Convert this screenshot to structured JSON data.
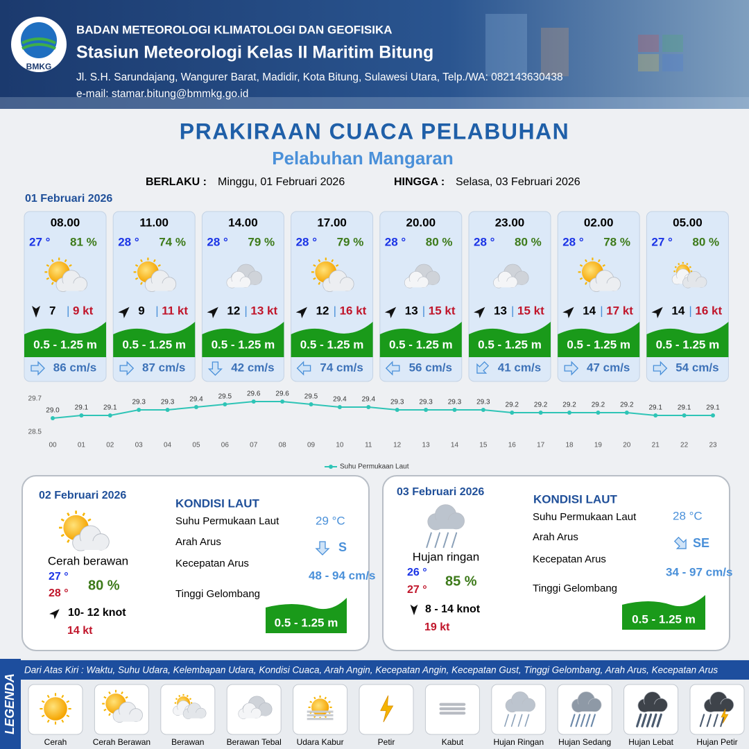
{
  "header": {
    "logo": "BMKG",
    "agency": "BADAN METEOROLOGI KLIMATOLOGI DAN GEOFISIKA",
    "station": "Stasiun Meteorologi Kelas II Maritim Bitung",
    "address": "Jl. S.H. Sarundajang, Wangurer Barat, Madidir, Kota Bitung, Sulawesi Utara, Telp./WA: 082143630438",
    "email": "e-mail: stamar.bitung@bmmkg.go.id"
  },
  "title": "PRAKIRAAN CUACA PELABUHAN",
  "subtitle": "Pelabuhan Mangaran",
  "validity": {
    "from_label": "BERLAKU :",
    "from": "Minggu, 01 Februari 2026",
    "to_label": "HINGGA :",
    "to": "Selasa, 03 Februari 2026"
  },
  "day1": {
    "date": "01 Februari 2026",
    "separator": "|",
    "forecasts": [
      {
        "time": "08.00",
        "temp": "27 °",
        "humidity": "81 %",
        "condition": "Cerah Berawan",
        "wind_dir": 180,
        "wind": "7",
        "gust": "9 kt",
        "wave": "0.5 - 1.25 m",
        "current_dir": 90,
        "current": "86 cm/s"
      },
      {
        "time": "11.00",
        "temp": "28 °",
        "humidity": "74 %",
        "condition": "Cerah Berawan",
        "wind_dir": 45,
        "wind": "9",
        "gust": "11 kt",
        "wave": "0.5 - 1.25 m",
        "current_dir": 90,
        "current": "87 cm/s"
      },
      {
        "time": "14.00",
        "temp": "28 °",
        "humidity": "79 %",
        "condition": "Berawan Tebal",
        "wind_dir": 45,
        "wind": "12",
        "gust": "13 kt",
        "wave": "0.5 - 1.25 m",
        "current_dir": 180,
        "current": "42 cm/s"
      },
      {
        "time": "17.00",
        "temp": "28 °",
        "humidity": "79 %",
        "condition": "Cerah Berawan",
        "wind_dir": 45,
        "wind": "12",
        "gust": "16 kt",
        "wave": "0.5 - 1.25 m",
        "current_dir": 270,
        "current": "74 cm/s"
      },
      {
        "time": "20.00",
        "temp": "28 °",
        "humidity": "80 %",
        "condition": "Berawan Tebal",
        "wind_dir": 45,
        "wind": "13",
        "gust": "15 kt",
        "wave": "0.5 - 1.25 m",
        "current_dir": 270,
        "current": "56 cm/s"
      },
      {
        "time": "23.00",
        "temp": "28 °",
        "humidity": "80 %",
        "condition": "Berawan Tebal",
        "wind_dir": 45,
        "wind": "13",
        "gust": "15 kt",
        "wave": "0.5 - 1.25 m",
        "current_dir": 225,
        "current": "41 cm/s"
      },
      {
        "time": "02.00",
        "temp": "28 °",
        "humidity": "78 %",
        "condition": "Cerah Berawan",
        "wind_dir": 45,
        "wind": "14",
        "gust": "17 kt",
        "wave": "0.5 - 1.25 m",
        "current_dir": 90,
        "current": "47 cm/s"
      },
      {
        "time": "05.00",
        "temp": "27 °",
        "humidity": "80 %",
        "condition": "Berawan",
        "wind_dir": 45,
        "wind": "14",
        "gust": "16 kt",
        "wave": "0.5 - 1.25 m",
        "current_dir": 90,
        "current": "54 cm/s"
      }
    ]
  },
  "chart_data": {
    "type": "line",
    "categories": [
      "00",
      "01",
      "02",
      "03",
      "04",
      "05",
      "06",
      "07",
      "08",
      "09",
      "10",
      "11",
      "12",
      "13",
      "14",
      "15",
      "16",
      "17",
      "18",
      "19",
      "20",
      "21",
      "22",
      "23"
    ],
    "series": [
      {
        "name": "Suhu Permukaan Laut",
        "color": "#2ec4b6",
        "values": [
          29.0,
          29.1,
          29.1,
          29.3,
          29.3,
          29.4,
          29.5,
          29.6,
          29.6,
          29.5,
          29.4,
          29.4,
          29.3,
          29.3,
          29.3,
          29.3,
          29.2,
          29.2,
          29.2,
          29.2,
          29.2,
          29.1,
          29.1,
          29.1
        ],
        "value_labels": [
          "29.0",
          "29.1",
          "29.1",
          "29.3",
          "29.3",
          "29.4",
          "29.5",
          "29.6",
          "29.6",
          "29.5",
          "29.4",
          "29.4",
          "29.3",
          "29.3",
          "29.3",
          "29.3",
          "29.2",
          "29.2",
          "29.2",
          "29.2",
          "29.2",
          "29.1",
          "29.1",
          "29.1"
        ]
      }
    ],
    "ylim": [
      28.5,
      29.7
    ],
    "yticks": [
      28.5,
      29.7
    ],
    "legend": "bottom"
  },
  "days": [
    {
      "date": "02 Februari 2026",
      "condition": "Cerah berawan",
      "icon": "Cerah Berawan",
      "temp_min": "27 °",
      "temp_max": "28 °",
      "humidity": "80 %",
      "wind_dir": 45,
      "wind": "10- 12 knot",
      "gust": "14 kt",
      "sea_title": "KONDISI LAUT",
      "sst_label": "Suhu Permukaan Laut",
      "sst": "29 °C",
      "current_dir_label": "Arah Arus",
      "current_dir": "S",
      "current_speed_label": "Kecepatan Arus",
      "current_speed": "48 - 94 cm/s",
      "wave_label": "Tinggi Gelombang",
      "wave": "0.5 - 1.25 m"
    },
    {
      "date": "03 Februari 2026",
      "condition": "Hujan ringan",
      "icon": "Hujan Ringan",
      "temp_min": "26 °",
      "temp_max": "27 °",
      "humidity": "85 %",
      "wind_dir": 180,
      "wind": "8 - 14 knot",
      "gust": "19 kt",
      "sea_title": "KONDISI LAUT",
      "sst_label": "Suhu Permukaan Laut",
      "sst": "28 °C",
      "current_dir_label": "Arah Arus",
      "current_dir": "SE",
      "current_speed_label": "Kecepatan Arus",
      "current_speed": "34 - 97 cm/s",
      "wave_label": "Tinggi Gelombang",
      "wave": "0.5 - 1.25 m"
    }
  ],
  "legend": {
    "title": "LEGENDA",
    "caption": "Dari Atas Kiri : Waktu, Suhu Udara, Kelembapan Udara, Kondisi Cuaca, Arah Angin, Kecepatan Angin, Kecepatan Gust, Tinggi Gelombang, Arah Arus, Kecepatan Arus",
    "items": [
      "Cerah",
      "Cerah Berawan",
      "Berawan",
      "Berawan Tebal",
      "Udara Kabur",
      "Petir",
      "Kabut",
      "Hujan Ringan",
      "Hujan Sedang",
      "Hujan Lebat",
      "Hujan Petir"
    ]
  }
}
